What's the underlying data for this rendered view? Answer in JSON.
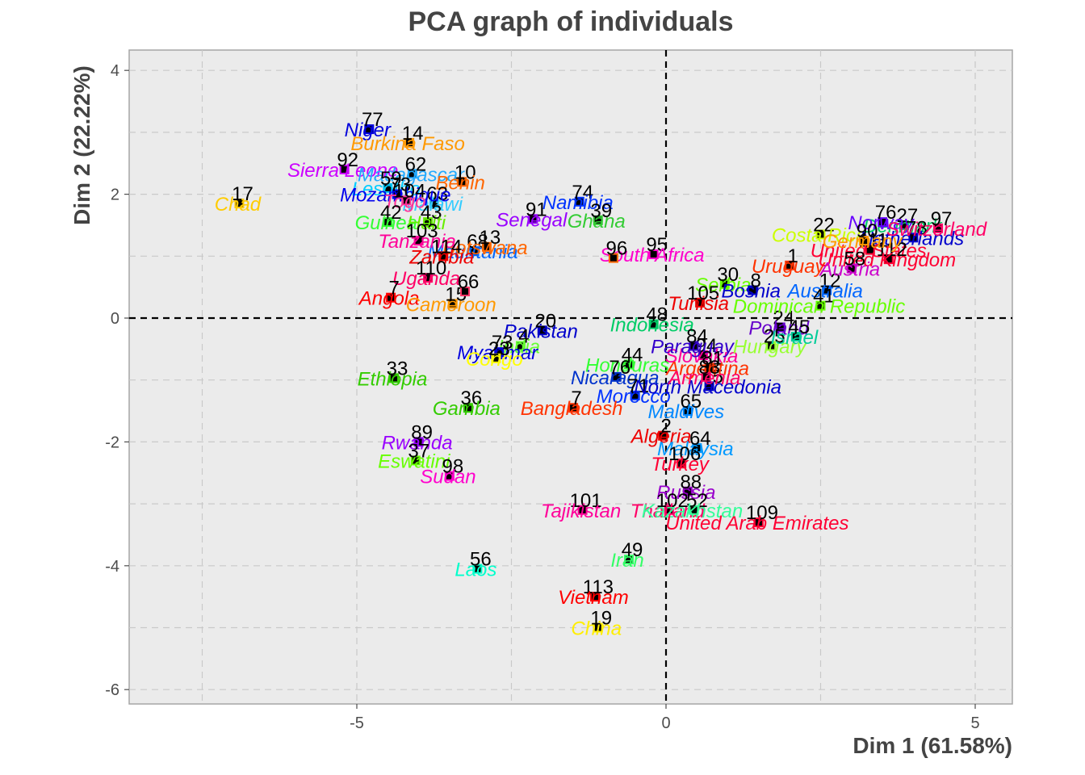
{
  "chart_data": {
    "type": "scatter",
    "title": "PCA graph of individuals",
    "xlabel": "Dim 1 (61.58%)",
    "ylabel": "Dim 2 (22.22%)",
    "xlim": [
      -8.6,
      5.6
    ],
    "ylim": [
      -6.3,
      4.3
    ],
    "xticks": [
      -5,
      0,
      5
    ],
    "yticks": [
      4,
      2,
      0,
      -2,
      -4,
      -6
    ],
    "grid": true,
    "reference_lines": [
      0,
      0
    ],
    "points": [
      {
        "id": "77",
        "label": "Niger",
        "x": -4.8,
        "y": 3.05,
        "color": "#0000dd"
      },
      {
        "id": "14",
        "label": "Burkina Faso",
        "x": -4.15,
        "y": 2.83,
        "color": "#ff9900"
      },
      {
        "id": "92",
        "label": "Sierra Leone",
        "x": -5.2,
        "y": 2.4,
        "color": "#cc00ff"
      },
      {
        "id": "62",
        "label": "Madagascar",
        "x": -4.1,
        "y": 2.33,
        "color": "#22aaff"
      },
      {
        "id": "10",
        "label": "Benin",
        "x": -3.3,
        "y": 2.2,
        "color": "#ff6600"
      },
      {
        "id": "17",
        "label": "Chad",
        "x": -6.9,
        "y": 1.85,
        "color": "#ffcc00"
      },
      {
        "id": "59",
        "label": "Lesotho",
        "x": -4.5,
        "y": 2.1,
        "color": "#00ccff"
      },
      {
        "id": "63",
        "label": "Malawi",
        "x": -3.75,
        "y": 1.85,
        "color": "#33ccff"
      },
      {
        "id": "73",
        "label": "Mozambique",
        "x": -4.35,
        "y": 2.0,
        "color": "#0000ee"
      },
      {
        "id": "74",
        "label": "Namibia",
        "x": -1.4,
        "y": 1.88,
        "color": "#0033ff"
      },
      {
        "id": "104",
        "label": "Togo",
        "x": -4.2,
        "y": 1.9,
        "color": "#ff3399"
      },
      {
        "id": "91",
        "label": "Senegal",
        "x": -2.15,
        "y": 1.6,
        "color": "#9900ff"
      },
      {
        "id": "39",
        "label": "Ghana",
        "x": -1.1,
        "y": 1.58,
        "color": "#33cc33"
      },
      {
        "id": "42",
        "label": "Guinea",
        "x": -4.5,
        "y": 1.55,
        "color": "#33ff33"
      },
      {
        "id": "43",
        "label": "Haiti",
        "x": -3.85,
        "y": 1.55,
        "color": "#66ee00"
      },
      {
        "id": "68",
        "label": "Mauritania",
        "x": -3.1,
        "y": 1.08,
        "color": "#0066ff"
      },
      {
        "id": "13",
        "label": "Botswana",
        "x": -2.9,
        "y": 1.15,
        "color": "#ff6600"
      },
      {
        "id": "95",
        "label": "South Africa",
        "x": -0.2,
        "y": 1.03,
        "color": "#ff00cc"
      },
      {
        "id": "103",
        "label": "Tanzania",
        "x": -4.0,
        "y": 1.25,
        "color": "#ff0099"
      },
      {
        "id": "114",
        "label": "Zambia",
        "x": -3.6,
        "y": 1.0,
        "color": "#ee0000"
      },
      {
        "id": "110",
        "label": "Uganda",
        "x": -3.85,
        "y": 0.65,
        "color": "#ff0066"
      },
      {
        "id": "7",
        "label": "Angola",
        "x": -4.45,
        "y": 0.33,
        "color": "#ff0000"
      },
      {
        "id": "15",
        "label": "Cameroon",
        "x": -3.45,
        "y": 0.23,
        "color": "#ff9900"
      },
      {
        "id": "96",
        "label": "",
        "x": -0.85,
        "y": 0.97,
        "color": "#ff6600"
      },
      {
        "id": "66",
        "label": "",
        "x": -3.25,
        "y": 0.43,
        "color": "#ff3366"
      },
      {
        "id": "20",
        "label": "Pakistan",
        "x": -2.0,
        "y": -0.2,
        "color": "#0000cc"
      },
      {
        "id": "48",
        "label": "Indonesia",
        "x": -0.2,
        "y": -0.1,
        "color": "#00cc66"
      },
      {
        "id": "4",
        "label": "India",
        "x": -2.35,
        "y": -0.45,
        "color": "#66ff33"
      },
      {
        "id": "73b",
        "label": "Myanmar",
        "x": -2.7,
        "y": -0.55,
        "color": "#0000dd"
      },
      {
        "id": "23",
        "label": "Congo",
        "x": -2.75,
        "y": -0.65,
        "color": "#ffff00"
      },
      {
        "id": "44",
        "label": "Honduras",
        "x": -0.6,
        "y": -0.75,
        "color": "#33ff33"
      },
      {
        "id": "76",
        "label": "Nicaragua",
        "x": -0.8,
        "y": -0.95,
        "color": "#0033cc"
      },
      {
        "id": "71",
        "label": "Morocco",
        "x": -0.5,
        "y": -1.25,
        "color": "#0033ff"
      },
      {
        "id": "33",
        "label": "Ethiopia",
        "x": -4.4,
        "y": -0.97,
        "color": "#33cc00"
      },
      {
        "id": "36",
        "label": "Gambia",
        "x": -3.2,
        "y": -1.45,
        "color": "#33cc00"
      },
      {
        "id": "7b",
        "label": "Bangladesh",
        "x": -1.5,
        "y": -1.45,
        "color": "#ff3300"
      },
      {
        "id": "2",
        "label": "Algeria",
        "x": -0.05,
        "y": -1.9,
        "color": "#ee0000"
      },
      {
        "id": "89",
        "label": "Rwanda",
        "x": -4.0,
        "y": -2.0,
        "color": "#9900ff"
      },
      {
        "id": "37",
        "label": "Eswatini",
        "x": -4.05,
        "y": -2.3,
        "color": "#66ff00"
      },
      {
        "id": "98",
        "label": "Sudan",
        "x": -3.5,
        "y": -2.55,
        "color": "#ff00cc"
      },
      {
        "id": "101",
        "label": "Tajikistan",
        "x": -1.35,
        "y": -3.1,
        "color": "#ff0099"
      },
      {
        "id": "49",
        "label": "Iran",
        "x": -0.6,
        "y": -3.9,
        "color": "#33ff66"
      },
      {
        "id": "56",
        "label": "Laos",
        "x": -3.05,
        "y": -4.05,
        "color": "#00ffcc"
      },
      {
        "id": "113",
        "label": "Vietnam",
        "x": -1.15,
        "y": -4.5,
        "color": "#ff0000"
      },
      {
        "id": "19",
        "label": "China",
        "x": -1.1,
        "y": -5.0,
        "color": "#ffee00"
      },
      {
        "id": "65",
        "label": "Maldives",
        "x": 0.35,
        "y": -1.5,
        "color": "#0088ff"
      },
      {
        "id": "64",
        "label": "Malaysia",
        "x": 0.5,
        "y": -2.1,
        "color": "#0099ff"
      },
      {
        "id": "106",
        "label": "Turkey",
        "x": 0.25,
        "y": -2.35,
        "color": "#ff0033"
      },
      {
        "id": "88",
        "label": "Russia",
        "x": 0.35,
        "y": -2.8,
        "color": "#9900cc"
      },
      {
        "id": "102",
        "label": "Thailand",
        "x": 0.05,
        "y": -3.1,
        "color": "#ff0066"
      },
      {
        "id": "52",
        "label": "Kazakhstan",
        "x": 0.45,
        "y": -3.1,
        "color": "#33ff99"
      },
      {
        "id": "109",
        "label": "United Arab Emirates",
        "x": 1.5,
        "y": -3.3,
        "color": "#ff0033"
      },
      {
        "id": "75",
        "label": "North Macedonia",
        "x": 0.7,
        "y": -1.1,
        "color": "#0000cc"
      },
      {
        "id": "94",
        "label": "Slovakia",
        "x": 0.6,
        "y": -0.6,
        "color": "#ff0099"
      },
      {
        "id": "84",
        "label": "Paraguay",
        "x": 0.45,
        "y": -0.45,
        "color": "#3300cc"
      },
      {
        "id": "81",
        "label": "Argentina",
        "x": 0.7,
        "y": -0.8,
        "color": "#ff3300"
      },
      {
        "id": "83",
        "label": "Armenia",
        "x": 0.65,
        "y": -0.95,
        "color": "#ff0066"
      },
      {
        "id": "24",
        "label": "Poland",
        "x": 1.85,
        "y": -0.15,
        "color": "#6600cc"
      },
      {
        "id": "25",
        "label": "Hungary",
        "x": 1.7,
        "y": -0.45,
        "color": "#99ff33"
      },
      {
        "id": "45",
        "label": "Israel",
        "x": 2.1,
        "y": -0.3,
        "color": "#00cc99"
      },
      {
        "id": "30",
        "label": "Serbia",
        "x": 0.95,
        "y": 0.55,
        "color": "#66ff00"
      },
      {
        "id": "8",
        "label": "Bosnia",
        "x": 1.4,
        "y": 0.45,
        "color": "#0000cc"
      },
      {
        "id": "12",
        "label": "Australia",
        "x": 2.6,
        "y": 0.45,
        "color": "#0066ff"
      },
      {
        "id": "105",
        "label": "Tunisia",
        "x": 0.55,
        "y": 0.25,
        "color": "#ee0000"
      },
      {
        "id": "41",
        "label": "Dominican Republic",
        "x": 2.5,
        "y": 0.2,
        "color": "#66ff00"
      },
      {
        "id": "22",
        "label": "Costa Rica",
        "x": 2.5,
        "y": 1.35,
        "color": "#ccff00"
      },
      {
        "id": "1",
        "label": "Uruguay",
        "x": 2.0,
        "y": 0.85,
        "color": "#ff3300"
      },
      {
        "id": "27",
        "label": "Denmark",
        "x": 3.85,
        "y": 1.5,
        "color": "#00cc66"
      },
      {
        "id": "76b",
        "label": "Norway",
        "x": 3.5,
        "y": 1.55,
        "color": "#6600ff"
      },
      {
        "id": "78",
        "label": "Netherlands",
        "x": 4.0,
        "y": 1.3,
        "color": "#0000cc"
      },
      {
        "id": "97",
        "label": "Switzerland",
        "x": 4.4,
        "y": 1.45,
        "color": "#ff0066"
      },
      {
        "id": "111",
        "label": "United States",
        "x": 3.3,
        "y": 1.1,
        "color": "#ff0033"
      },
      {
        "id": "112",
        "label": "United Kingdom",
        "x": 3.6,
        "y": 0.95,
        "color": "#ff0033"
      },
      {
        "id": "58",
        "label": "Austria",
        "x": 3.0,
        "y": 0.8,
        "color": "#cc00cc"
      },
      {
        "id": "90",
        "label": "Germany",
        "x": 3.2,
        "y": 1.25,
        "color": "#ff9900"
      }
    ]
  }
}
